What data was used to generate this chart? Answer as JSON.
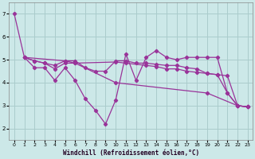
{
  "background_color": "#cce8e8",
  "grid_color": "#aacccc",
  "line_color": "#993399",
  "xlabel": "Windchill (Refroidissement éolien,°C)",
  "ylim": [
    1.5,
    7.5
  ],
  "xlim": [
    -0.5,
    23.5
  ],
  "yticks": [
    2,
    3,
    4,
    5,
    6,
    7
  ],
  "xticks": [
    0,
    1,
    2,
    3,
    4,
    5,
    6,
    7,
    8,
    9,
    10,
    11,
    12,
    13,
    14,
    15,
    16,
    17,
    18,
    19,
    20,
    21,
    22,
    23
  ],
  "series": [
    {
      "x": [
        0,
        1,
        2,
        3,
        4,
        5,
        6,
        7,
        8,
        9,
        10,
        11,
        12,
        13,
        14,
        15,
        16,
        17,
        18,
        19,
        20,
        21,
        22,
        23
      ],
      "y": [
        7.0,
        5.1,
        4.65,
        4.65,
        4.1,
        4.65,
        4.1,
        3.3,
        2.8,
        2.2,
        3.25,
        5.25,
        4.1,
        5.1,
        5.4,
        5.1,
        5.0,
        5.1,
        5.1,
        5.1,
        5.1,
        3.55,
        3.0,
        2.95
      ]
    },
    {
      "x": [
        1,
        2,
        3,
        4,
        5,
        6,
        7,
        8,
        9,
        10,
        11,
        12,
        13,
        14,
        15,
        16,
        17,
        18,
        19,
        20,
        21,
        22,
        23
      ],
      "y": [
        5.1,
        4.95,
        4.85,
        4.75,
        4.95,
        4.95,
        4.65,
        4.5,
        4.5,
        4.95,
        4.95,
        4.85,
        4.85,
        4.8,
        4.75,
        4.75,
        4.65,
        4.6,
        4.4,
        4.35,
        4.3,
        3.0,
        2.95
      ]
    },
    {
      "x": [
        1,
        2,
        3,
        4,
        5,
        6,
        10,
        11,
        13,
        14,
        15,
        16,
        17,
        18,
        19,
        20,
        21,
        22,
        23
      ],
      "y": [
        5.1,
        4.95,
        4.85,
        4.6,
        4.85,
        4.85,
        4.9,
        4.85,
        4.75,
        4.7,
        4.6,
        4.6,
        4.5,
        4.45,
        4.4,
        4.35,
        3.55,
        3.0,
        2.95
      ]
    },
    {
      "x": [
        1,
        5,
        6,
        10,
        19,
        22,
        23
      ],
      "y": [
        5.1,
        4.95,
        4.85,
        4.0,
        3.55,
        3.0,
        2.95
      ]
    }
  ]
}
